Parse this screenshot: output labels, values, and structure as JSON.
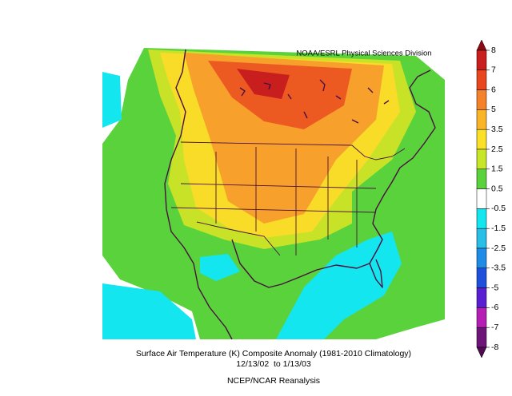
{
  "credit": "NOAA/ESRL Physical Sciences Division",
  "title": "Surface Air Temperature (K) Composite Anomaly (1981-2010 Climatology)",
  "date_range": "12/13/02  to 1/13/03",
  "source": "NCEP/NCAR Reanalysis",
  "colorbar": {
    "labels": [
      8,
      7,
      6,
      5,
      3.5,
      2.5,
      1.5,
      0.5,
      -0.5,
      -1.5,
      -2.5,
      -3.5,
      -5,
      -6,
      -7,
      -8
    ]
  }
}
